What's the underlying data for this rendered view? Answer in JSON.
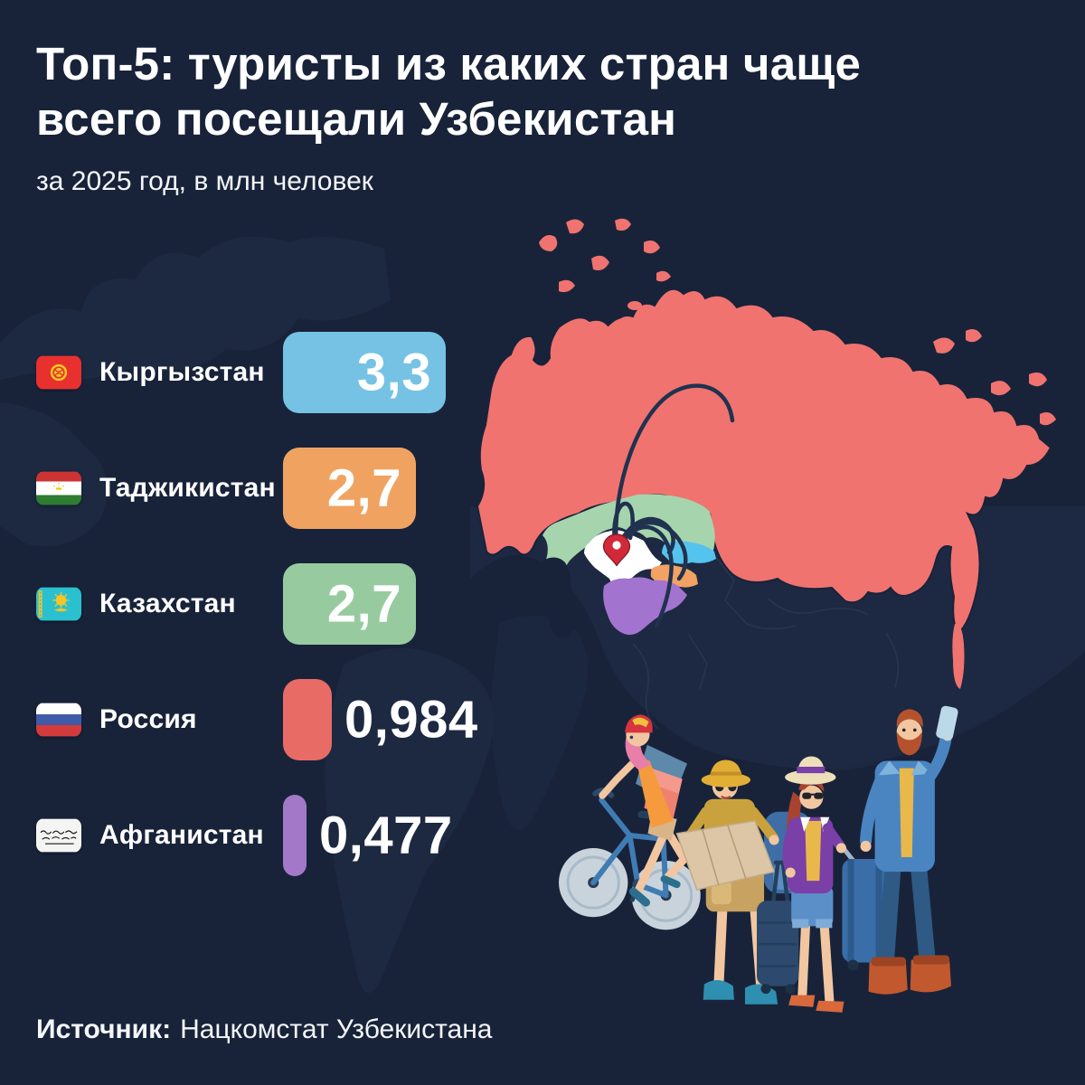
{
  "header": {
    "title": "Топ-5: туристы из каких стран чаще\nвсего посещали Узбекистан",
    "subtitle": "за 2025 год, в млн человек"
  },
  "source": {
    "label": "Источник:",
    "name": "Нацкомстат Узбекистана"
  },
  "chart_data": {
    "type": "bar",
    "orientation": "horizontal",
    "title": "Топ-5: туристы из каких стран чаще всего посещали Узбекистан",
    "subtitle": "за 2025 год, в млн человек",
    "unit": "млн человек",
    "period": "2025",
    "categories": [
      "Кыргызстан",
      "Таджикистан",
      "Казахстан",
      "Россия",
      "Афганистан"
    ],
    "values": [
      3.3,
      2.7,
      2.7,
      0.984,
      0.477
    ],
    "value_labels": [
      "3,3",
      "2,7",
      "2,7",
      "0,984",
      "0,477"
    ],
    "bar_colors": [
      "#76c2e4",
      "#f0a361",
      "#97cb9f",
      "#e96b66",
      "#a478c8"
    ],
    "value_inside": [
      true,
      true,
      true,
      false,
      false
    ],
    "xlim": [
      0,
      3.3
    ],
    "grid": false,
    "legend": false,
    "flags": [
      "flag-kyrgyzstan",
      "flag-tajikistan",
      "flag-kazakhstan",
      "flag-russia",
      "flag-afghanistan"
    ]
  },
  "map": {
    "destination": "Узбекистан",
    "pin_color": "#d2293a",
    "route_color": "#20324f",
    "regions": [
      {
        "name": "Россия",
        "color": "#f0736f"
      },
      {
        "name": "Казахстан",
        "color": "#a6d5ad"
      },
      {
        "name": "Кыргызстан",
        "color": "#54c3ee"
      },
      {
        "name": "Таджикистан",
        "color": "#f2a263"
      },
      {
        "name": "Афганистан",
        "color": "#a273cf"
      },
      {
        "name": "Узбекистан",
        "color": "#ffffff"
      }
    ]
  },
  "colors": {
    "background": "#18233a",
    "text": "#ffffff",
    "faint_land": "#223049"
  }
}
